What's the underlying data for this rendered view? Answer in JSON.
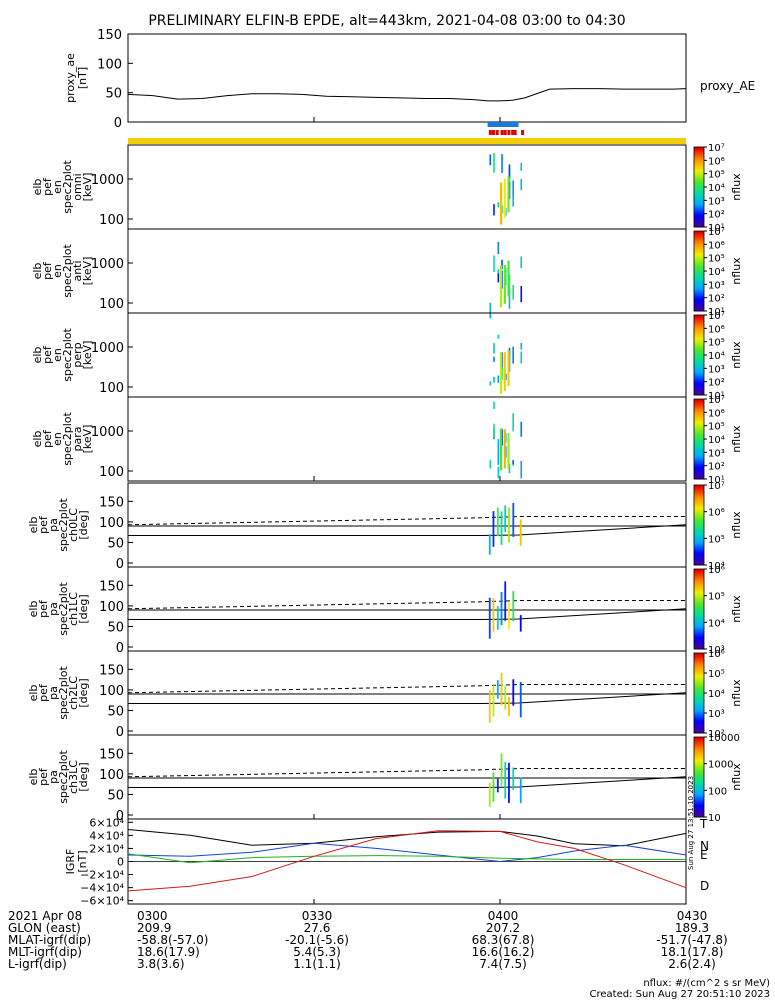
{
  "chart_data": {
    "type": "spectrogram-stack",
    "title": "PRELIMINARY ELFIN-B EPDE, alt=443km, 2021-04-08 03:00 to 04:30",
    "time_axis": {
      "start": "2021-04-08 03:00",
      "end": "2021-04-08 04:30",
      "ticks": [
        "0300",
        "0330",
        "0400",
        "0430"
      ],
      "tick_minutes": [
        0,
        30,
        60,
        90
      ]
    },
    "proxy_ae": {
      "ylabel": "proxy_ae\n[nT]",
      "legend": "proxy_AE",
      "ylim": [
        0,
        150
      ],
      "yticks": [
        "0",
        "50",
        "100",
        "150"
      ],
      "series": {
        "minutes": [
          0,
          4,
          8,
          12,
          16,
          20,
          24,
          28,
          32,
          36,
          40,
          44,
          48,
          52,
          56,
          58,
          60,
          62,
          64,
          68,
          72,
          76,
          80,
          84,
          88,
          90
        ],
        "values": [
          47,
          45,
          39,
          40,
          45,
          48,
          48,
          47,
          44,
          43,
          42,
          41,
          40,
          40,
          38,
          36,
          36,
          37,
          41,
          56,
          57,
          57,
          56,
          56,
          56,
          57
        ]
      }
    },
    "status_bar": {
      "blue_segment_minutes": [
        58,
        63
      ],
      "red_ticks_minutes": [
        58.2,
        58.7,
        59.3,
        60.1,
        60.6,
        61.2,
        61.8,
        62.2,
        63.4
      ]
    },
    "energy_panels": [
      {
        "ylabel": "elb\npef\nen\nspec2plot\nomni\n[keV]",
        "yticks": [
          "100",
          "1000"
        ],
        "cbar": {
          "label": "nflux",
          "ticks": [
            "10¹",
            "10²",
            "10³",
            "10⁴",
            "10⁵",
            "10⁶",
            "10⁷"
          ]
        }
      },
      {
        "ylabel": "elb\npef\nen\nspec2plot\nanti\n[keV]",
        "yticks": [
          "100",
          "1000"
        ],
        "cbar": {
          "label": "nflux",
          "ticks": [
            "10¹",
            "10²",
            "10³",
            "10⁴",
            "10⁵",
            "10⁶",
            "10⁷"
          ]
        }
      },
      {
        "ylabel": "elb\npef\nen\nspec2plot\nperp\n[keV]",
        "yticks": [
          "100",
          "1000"
        ],
        "cbar": {
          "label": "nflux",
          "ticks": [
            "10¹",
            "10²",
            "10³",
            "10⁴",
            "10⁵",
            "10⁶",
            "10⁷"
          ]
        }
      },
      {
        "ylabel": "elb\npef\nen\nspec2plot\npara\n[keV]",
        "yticks": [
          "100",
          "1000"
        ],
        "cbar": {
          "label": "nflux",
          "ticks": [
            "10¹",
            "10²",
            "10³",
            "10⁴",
            "10⁵",
            "10⁶",
            "10⁷"
          ]
        }
      }
    ],
    "pitch_panels": [
      {
        "ylabel": "elb\npef\npa\nspec2plot\nch0LC\n[deg]",
        "yticks": [
          "0",
          "50",
          "100",
          "150"
        ],
        "cbar": {
          "label": "nflux",
          "ticks": [
            "10⁴",
            "10⁵",
            "10⁶",
            "10⁷"
          ]
        }
      },
      {
        "ylabel": "elb\npef\npa\nspec2plot\nch1LC\n[deg]",
        "yticks": [
          "0",
          "50",
          "100",
          "150"
        ],
        "cbar": {
          "label": "nflux",
          "ticks": [
            "10³",
            "10⁴",
            "10⁵",
            "10⁶"
          ]
        }
      },
      {
        "ylabel": "elb\npef\npa\nspec2plot\nch2LC\n[deg]",
        "yticks": [
          "0",
          "50",
          "100",
          "150"
        ],
        "cbar": {
          "label": "nflux",
          "ticks": [
            "10²",
            "10³",
            "10⁴",
            "10⁵",
            "10⁶"
          ]
        }
      },
      {
        "ylabel": "elb\npef\npa\nspec2plot\nch3LC\n[deg]",
        "yticks": [
          "0",
          "50",
          "100",
          "150"
        ],
        "cbar": {
          "label": "nflux",
          "ticks": [
            "10",
            "100",
            "1000",
            "10000"
          ]
        }
      }
    ],
    "igrf": {
      "ylabel": "IGRF\n[nT]",
      "ylim": [
        -65000,
        65000
      ],
      "yticks": [
        "−6×10⁴",
        "−4×10⁴",
        "−2×10⁴",
        "0",
        "2×10⁴",
        "4×10⁴",
        "6×10⁴"
      ],
      "legend": [
        "T",
        "N",
        "E",
        "D"
      ],
      "colors": {
        "T": "#000000",
        "N": "#1a3fd6",
        "E": "#1fb31f",
        "D": "#d61a1a"
      },
      "minutes": [
        0,
        10,
        20,
        30,
        40,
        50,
        60,
        66,
        72,
        80,
        90
      ],
      "T": [
        49000,
        40000,
        25000,
        28000,
        38000,
        45000,
        46000,
        39000,
        27000,
        24000,
        43000
      ],
      "N": [
        10000,
        8000,
        14000,
        28000,
        20000,
        10000,
        0,
        6000,
        16000,
        25000,
        10000
      ],
      "E": [
        12000,
        -2000,
        6000,
        8000,
        9000,
        8000,
        5000,
        4000,
        3000,
        3000,
        3000
      ],
      "D": [
        -45000,
        -38000,
        -23000,
        8000,
        35000,
        47000,
        46000,
        30000,
        20000,
        -5000,
        -40000
      ],
      "stamp": "Sun Aug 27 13:51:10 2023"
    },
    "orbit_table": {
      "header": "2021 Apr 08",
      "rows": [
        {
          "label": "GLON (east)",
          "values": [
            "209.9",
            "27.6",
            "207.2",
            "189.3"
          ]
        },
        {
          "label": "MLAT-igrf(dip)",
          "values": [
            "-58.8(-57.0)",
            "-20.1(-5.6)",
            "68.3(67.8)",
            "-51.7(-47.8)"
          ]
        },
        {
          "label": "MLT-igrf(dip)",
          "values": [
            "18.6(17.9)",
            "5.4(5.3)",
            "16.6(16.2)",
            "18.1(17.8)"
          ]
        },
        {
          "label": "L-igrf(dip)",
          "values": [
            "3.8(3.6)",
            "1.1(1.1)",
            "7.4(7.5)",
            "2.6(2.4)"
          ]
        }
      ]
    },
    "footer": {
      "units": "nflux: #/(cm^2 s sr MeV)",
      "created": "Created: Sun Aug 27 20:51:10 2023"
    }
  }
}
